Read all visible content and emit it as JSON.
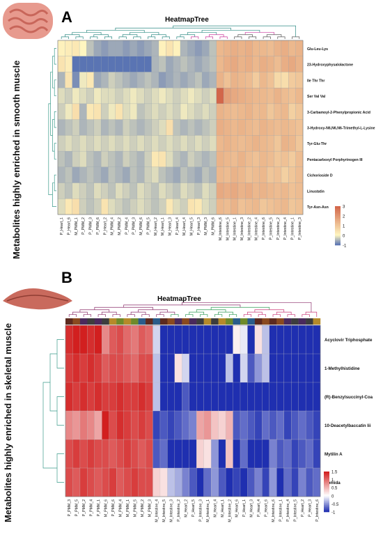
{
  "panel_a_letter": "A",
  "panel_b_letter": "B",
  "side_label_a": "Metabolites highly enriched in  smooth muscle",
  "side_label_b": "Metabolites highly enriched in skeletal muscle",
  "colors": {
    "a_low": "#5a74b3",
    "a_mid": "#fff6c0",
    "a_high": "#d2664a",
    "b_low": "#1f2fb0",
    "b_mid": "#ffffff",
    "b_high": "#d21f1f"
  },
  "chart_data": [
    {
      "type": "heatmap",
      "title": "HeatmapTree",
      "columns": [
        "P_Heart_1",
        "P_Heart_6",
        "M_PMM_1",
        "P_PMM_2",
        "P_PMM_3",
        "P_PMM_6",
        "P_Heart_2",
        "M_PMM_4",
        "M_PMM_2",
        "P_PMM_4",
        "P_PMM_3",
        "M_PMM_6",
        "P_PMM_5",
        "M_Heart_2",
        "M_Heart_1",
        "M_Heart_3",
        "P_Heart_4",
        "M_Heart_4",
        "M_Heart_5",
        "P_Heart_3",
        "M_PMM_3",
        "M_PMM_6",
        "M_Intestine_6",
        "M_Intestine_5",
        "M_Intestine_1",
        "M_Intestine_3",
        "M_Intestine_2",
        "M_Intestine_4",
        "P_Intestine_6",
        "P_Intestine_5",
        "P_Intestine_2",
        "P_Intestine_4",
        "P_Intestine_1",
        "P_Intestine_3"
      ],
      "rows": [
        "Glu-Leu-Lys",
        "23-Hydroxyphysalolactone",
        "Ile Thr Thr",
        "Ser Val Val",
        "3-Carbamoyl-2-Phenylpropionic Acid",
        "3-Hydroxy-N6,N6,N6-Trimethyl-L-Lysine",
        "Tyr-Glu-Thr",
        "Pentacarboxyl Porphyrinogen III",
        "Cichorioside D",
        "Linustatin",
        "Tyr-Asn-Asn"
      ],
      "values": [
        [
          0.1,
          0.2,
          0.3,
          0,
          -0.4,
          -0.6,
          -0.7,
          -0.6,
          -0.6,
          -0.7,
          -0.6,
          -0.7,
          -0.6,
          -0.5,
          0.1,
          0.4,
          0.1,
          -0.5,
          -0.6,
          -0.7,
          -0.6,
          -0.4,
          1.3,
          1.4,
          1.5,
          1.4,
          1.5,
          1.3,
          1.3,
          1.2,
          1.4,
          1.5,
          1.3,
          1.4
        ],
        [
          0.4,
          0.2,
          -1.0,
          -1.0,
          -1.1,
          -1.0,
          -1.1,
          -1.0,
          -1.1,
          -1.0,
          -1.1,
          -1.0,
          -1.1,
          -0.5,
          -0.4,
          -0.6,
          -0.5,
          -0.4,
          -0.5,
          -0.6,
          -0.5,
          -0.4,
          1.3,
          1.5,
          1.6,
          1.4,
          1.5,
          1.3,
          1.5,
          1.4,
          1.2,
          1.5,
          1.6,
          1.4
        ],
        [
          -0.5,
          0.4,
          -0.8,
          -0.1,
          0.3,
          -0.6,
          -0.5,
          -0.3,
          -0.4,
          -0.5,
          -0.6,
          -0.5,
          -0.4,
          -0.5,
          -0.7,
          -0.6,
          -0.5,
          -0.6,
          -0.5,
          -0.4,
          -0.6,
          -0.5,
          1.4,
          1.1,
          1.4,
          1.3,
          1.2,
          0.9,
          1.3,
          1.1,
          0.6,
          0.5,
          0.9,
          1.0
        ],
        [
          -0.2,
          -0.3,
          -0.1,
          -0.2,
          -0.3,
          -0.1,
          -0.2,
          -0.2,
          -0.3,
          -0.2,
          -0.1,
          -0.2,
          -0.3,
          -0.2,
          -0.1,
          -0.2,
          -0.3,
          -0.2,
          -0.1,
          -0.2,
          -0.3,
          -0.2,
          3.0,
          1.8,
          1.6,
          1.5,
          1.4,
          1.3,
          1.3,
          1.2,
          1.4,
          1.2,
          1.1,
          1.3
        ],
        [
          -0.3,
          -0.1,
          0.5,
          -0.5,
          0.3,
          0.4,
          -0.3,
          -0.1,
          0.4,
          -0.2,
          -0.1,
          -0.4,
          -0.3,
          -0.2,
          -0.3,
          -0.2,
          -0.3,
          -0.1,
          -0.2,
          -0.3,
          -0.2,
          -0.3,
          1.4,
          1.3,
          1.2,
          1.3,
          1.4,
          1.2,
          1.3,
          1.0,
          1.2,
          1.3,
          0.8,
          1.0
        ],
        [
          -0.5,
          -0.4,
          -0.3,
          -0.5,
          -0.4,
          -0.3,
          -0.5,
          -0.4,
          -0.5,
          -0.3,
          -0.4,
          -0.5,
          -0.4,
          -0.3,
          -0.2,
          0.5,
          -0.4,
          -0.5,
          -0.4,
          -0.5,
          -0.4,
          -0.3,
          1.5,
          1.4,
          1.3,
          1.4,
          1.3,
          1.2,
          1.4,
          1.3,
          1.2,
          1.3,
          1.2,
          1.1
        ],
        [
          -0.3,
          -0.2,
          -0.3,
          -0.2,
          -0.3,
          -0.2,
          -0.3,
          -0.2,
          -0.3,
          -0.2,
          -0.3,
          -0.2,
          -0.3,
          -0.2,
          -0.3,
          -0.2,
          -0.3,
          -0.2,
          -0.3,
          -0.2,
          -0.3,
          -0.2,
          1.3,
          1.4,
          1.3,
          1.2,
          1.3,
          1.4,
          1.3,
          1.2,
          1.0,
          1.4,
          1.3,
          1.0
        ],
        [
          -0.4,
          -0.5,
          -0.3,
          -0.2,
          -0.4,
          -0.5,
          -0.3,
          -0.4,
          -0.5,
          -0.3,
          -0.4,
          -0.5,
          -0.3,
          0.3,
          0.4,
          -0.2,
          -0.4,
          -0.5,
          -0.3,
          -0.4,
          -0.5,
          -0.4,
          1.4,
          1.3,
          1.2,
          1.4,
          1.2,
          1.1,
          1.3,
          1.2,
          1.0,
          1.1,
          0.9,
          1.2
        ],
        [
          -0.5,
          -0.4,
          -0.6,
          -0.5,
          -0.4,
          -0.5,
          -0.6,
          -0.4,
          -0.5,
          -0.6,
          -0.4,
          -0.5,
          -0.3,
          -0.2,
          -0.4,
          -0.5,
          -0.6,
          -0.4,
          -0.5,
          -0.6,
          -0.4,
          -0.5,
          1.3,
          1.2,
          1.4,
          1.3,
          1.1,
          1.2,
          1.3,
          1.0,
          1.1,
          0.8,
          1.0,
          1.2
        ],
        [
          -0.3,
          -0.4,
          -0.2,
          -0.3,
          -0.4,
          -0.2,
          -0.3,
          -0.4,
          -0.2,
          -0.3,
          -0.4,
          -0.2,
          -0.3,
          -0.4,
          -0.2,
          -0.3,
          -0.4,
          -0.2,
          -0.3,
          -0.4,
          -0.2,
          -0.3,
          1.6,
          1.5,
          1.6,
          1.4,
          1.5,
          1.3,
          1.4,
          1.3,
          1.2,
          1.3,
          1.1,
          1.2
        ],
        [
          -0.2,
          0.3,
          0.5,
          -0.3,
          -0.4,
          -0.3,
          0.4,
          -0.2,
          -0.3,
          -0.4,
          -0.3,
          -0.2,
          -0.3,
          -0.4,
          -0.3,
          0.3,
          -0.2,
          -0.3,
          0.4,
          0.3,
          -0.2,
          -0.3,
          1.3,
          1.2,
          1.4,
          1.1,
          1.2,
          1.3,
          1.0,
          1.1,
          1.2,
          1.3,
          1.0,
          1.1
        ]
      ],
      "color_scale": {
        "min": -1,
        "max": 3,
        "ticks": [
          3,
          2,
          1,
          0,
          -1
        ]
      }
    },
    {
      "type": "heatmap",
      "title": "HeatmapTree",
      "columns": [
        "P_PMM_3",
        "P_PMM_5",
        "P_PMM_2",
        "P_PMM_4",
        "P_PMM_1",
        "M_PMM_6",
        "P_PMM_6",
        "M_PMM_4",
        "M_PMM_1",
        "M_PMM_5",
        "M_PMM_2",
        "M_PMM_3",
        "M_Intestine_4",
        "M_Intestine_5",
        "M_Intestine_3",
        "P_Intestine_2",
        "M_Heart_2",
        "P_Heart_5",
        "P_Intestine_3",
        "M_Intestine_1",
        "M_Heart_4",
        "M_Heart_1",
        "M_Intestine_2",
        "M_Heart_6",
        "P_Heart_1",
        "M_Heart_3",
        "P_Heart_4",
        "P_Heart_6",
        "M_Intestine_6",
        "P_Intestine_1",
        "P_Intestine_4",
        "P_Intestine_5",
        "P_Heart_2",
        "P_Heart_3",
        "P_Intestine_6"
      ],
      "rows": [
        "Acyclovir Triphosphate",
        "1-Methylhistidine",
        "(R)-Benzylsuccinyl-Coa",
        "10-Deacetylbaccatin Iii",
        "Mytilin A",
        "Cbmida"
      ],
      "values": [
        [
          1.4,
          1.5,
          1.5,
          1.4,
          1.5,
          0.8,
          1.1,
          1.2,
          1.0,
          0.9,
          1.1,
          1.0,
          -0.2,
          -1.0,
          -1.0,
          -1.1,
          -1.0,
          -1.1,
          -1.0,
          -1.1,
          -1.0,
          -1.1,
          -1.0,
          0.1,
          -0.1,
          -1.0,
          0.2,
          -0.3,
          -1.0,
          -1.0,
          -1.1,
          -1.0,
          -1.1,
          -1.0,
          -1.1
        ],
        [
          1.3,
          1.4,
          1.3,
          1.4,
          1.3,
          1.1,
          1.2,
          1.2,
          1.1,
          1.0,
          1.2,
          1.2,
          -0.3,
          -1.1,
          -1.0,
          0.2,
          -0.2,
          -1.0,
          -1.0,
          -1.1,
          -1.0,
          -1.1,
          -0.3,
          -1.1,
          -0.2,
          -0.8,
          -0.5,
          -0.3,
          -1.0,
          -1.0,
          -1.1,
          -1.0,
          -1.1,
          -1.0,
          -1.1
        ],
        [
          1.4,
          1.3,
          1.4,
          1.3,
          1.4,
          1.3,
          1.3,
          1.4,
          1.3,
          1.3,
          1.4,
          1.3,
          -0.3,
          -1.0,
          -1.1,
          -1.0,
          -0.8,
          -1.0,
          -1.1,
          -1.0,
          -1.1,
          -1.0,
          -1.1,
          -1.0,
          -1.1,
          -1.0,
          -1.1,
          -1.0,
          -1.0,
          -1.1,
          -1.0,
          -1.1,
          -1.0,
          -1.1,
          -1.0
        ],
        [
          0.8,
          0.7,
          0.9,
          0.8,
          0.6,
          1.5,
          1.2,
          1.4,
          1.3,
          1.2,
          1.3,
          1.2,
          -0.9,
          -0.8,
          -0.9,
          -0.8,
          -0.7,
          -0.6,
          0.6,
          0.7,
          0.4,
          0.3,
          0.5,
          -0.8,
          -0.7,
          -0.8,
          -0.9,
          -0.7,
          -0.8,
          -0.7,
          -0.9,
          -0.8,
          -0.7,
          -0.8,
          -0.9
        ],
        [
          1.2,
          1.3,
          1.2,
          1.3,
          1.2,
          1.2,
          1.1,
          1.2,
          1.3,
          1.2,
          1.1,
          1.2,
          -0.8,
          -0.7,
          -1.0,
          -1.1,
          -1.0,
          -1.1,
          0.3,
          0.2,
          -0.5,
          -1.0,
          0.4,
          -1.0,
          -0.7,
          -1.0,
          -1.1,
          -1.0,
          -0.6,
          -0.8,
          -0.7,
          -0.9,
          -0.8,
          -0.7,
          -0.9
        ],
        [
          1.2,
          1.1,
          1.3,
          1.2,
          1.1,
          1.2,
          1.3,
          1.1,
          1.2,
          1.3,
          1.2,
          1.2,
          0.3,
          0.2,
          -0.3,
          -0.4,
          -0.6,
          -0.8,
          -1.1,
          -0.7,
          -0.5,
          -0.8,
          -1.1,
          -0.9,
          -1.1,
          -0.8,
          -0.6,
          -0.9,
          -0.5,
          -1.0,
          -0.7,
          -0.9,
          -0.6,
          -0.8,
          -0.7
        ]
      ],
      "color_scale": {
        "min": -1,
        "max": 1.5,
        "ticks": [
          1.5,
          1,
          0.5,
          0,
          -0.5,
          -1
        ]
      }
    }
  ]
}
